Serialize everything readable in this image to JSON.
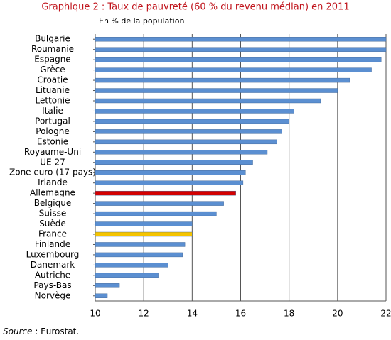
{
  "chart_data": {
    "type": "hbar",
    "title": "Graphique 2 : Taux de pauvreté (60 % du revenu médian) en 2011",
    "subtitle": "En % de la population",
    "categories": [
      "Bulgarie",
      "Roumanie",
      "Espagne",
      "Grèce",
      "Croatie",
      "Lituanie",
      "Lettonie",
      "Italie",
      "Portugal",
      "Pologne",
      "Estonie",
      "Royaume-Uni",
      "UE 27",
      "Zone euro (17 pays)",
      "Irlande",
      "Allemagne",
      "Belgique",
      "Suisse",
      "Suède",
      "France",
      "Finlande",
      "Luxembourg",
      "Danemark",
      "Autriche",
      "Pays-Bas",
      "Norvège"
    ],
    "values": [
      22.0,
      22.0,
      21.8,
      21.4,
      20.5,
      20.0,
      19.3,
      18.2,
      18.0,
      17.7,
      17.5,
      17.1,
      16.5,
      16.2,
      16.1,
      15.8,
      15.3,
      15.0,
      14.0,
      14.0,
      13.7,
      13.6,
      13.0,
      12.6,
      11.0,
      10.5
    ],
    "colors": [
      "#5b8fd1",
      "#5b8fd1",
      "#5b8fd1",
      "#5b8fd1",
      "#5b8fd1",
      "#5b8fd1",
      "#5b8fd1",
      "#5b8fd1",
      "#5b8fd1",
      "#5b8fd1",
      "#5b8fd1",
      "#5b8fd1",
      "#5b8fd1",
      "#5b8fd1",
      "#5b8fd1",
      "#d40000",
      "#5b8fd1",
      "#5b8fd1",
      "#5b8fd1",
      "#f5c400",
      "#5b8fd1",
      "#5b8fd1",
      "#5b8fd1",
      "#5b8fd1",
      "#5b8fd1",
      "#5b8fd1"
    ],
    "xlim": [
      10,
      22
    ],
    "xticks": [
      10,
      12,
      14,
      16,
      18,
      20,
      22
    ],
    "grid": true,
    "source_label": "Source",
    "source_text": ": Eurostat."
  }
}
